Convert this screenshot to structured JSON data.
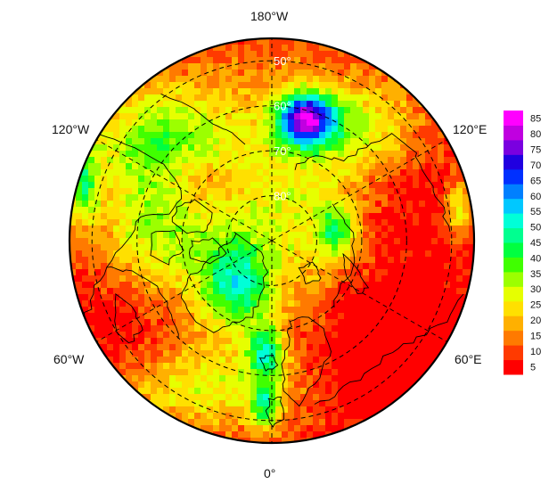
{
  "map": {
    "projection": "north-polar-stereographic",
    "lon_labels": {
      "top": "180°W",
      "bottom": "0°",
      "upper_left": "120°W",
      "upper_right": "120°E",
      "lower_left": "60°W",
      "lower_right": "60°E"
    },
    "lat_labels": [
      "50°",
      "60°",
      "70°",
      "80°"
    ],
    "colors": {
      "frame": "#000000",
      "grid": "#000000",
      "coast": "#000000"
    }
  },
  "colorbar": {
    "ticks": [
      "85",
      "80",
      "75",
      "70",
      "65",
      "60",
      "55",
      "50",
      "45",
      "40",
      "35",
      "30",
      "25",
      "20",
      "15",
      "10",
      "5"
    ],
    "range": [
      2.5,
      87.5
    ],
    "palette": [
      "#ff0000",
      "#ff3a00",
      "#ff7a00",
      "#ffb000",
      "#ffe000",
      "#e6ff00",
      "#9cff00",
      "#40ff00",
      "#00ff40",
      "#00ff90",
      "#00ffd8",
      "#00c8ff",
      "#0080ff",
      "#0030ff",
      "#2000e0",
      "#7a00e0",
      "#c000e0",
      "#ff00ff"
    ]
  }
}
